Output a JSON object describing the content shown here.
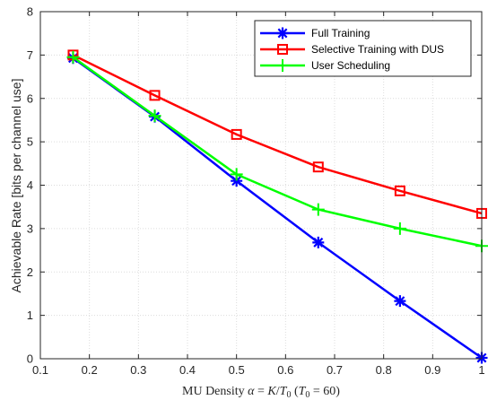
{
  "chart_data": {
    "type": "line",
    "title": "",
    "xlabel": "MU Density α = K/T₀ (T₀ = 60)",
    "ylabel": "Achievable Rate [bits per channel use]",
    "xlim": [
      0.1,
      1
    ],
    "ylim": [
      0,
      8
    ],
    "xticks": [
      "0.1",
      "0.2",
      "0.3",
      "0.4",
      "0.5",
      "0.6",
      "0.7",
      "0.8",
      "0.9",
      "1"
    ],
    "yticks": [
      "0",
      "1",
      "2",
      "3",
      "4",
      "5",
      "6",
      "7",
      "8"
    ],
    "grid": true,
    "legend_position": "top-right",
    "series": [
      {
        "name": "Full Training",
        "color": "#0000ff",
        "marker": "asterisk",
        "x": [
          0.1667,
          0.3333,
          0.5,
          0.6667,
          0.8333,
          1.0
        ],
        "y": [
          6.93,
          5.58,
          4.1,
          2.68,
          1.33,
          0.02
        ]
      },
      {
        "name": "Selective Training with DUS",
        "color": "#ff0000",
        "marker": "square",
        "x": [
          0.1667,
          0.3333,
          0.5,
          0.6667,
          0.8333,
          1.0
        ],
        "y": [
          7.0,
          6.07,
          5.17,
          4.42,
          3.87,
          3.35
        ]
      },
      {
        "name": "User Scheduling",
        "color": "#00ff00",
        "marker": "plus",
        "x": [
          0.1667,
          0.3333,
          0.5,
          0.6667,
          0.8333,
          1.0
        ],
        "y": [
          6.95,
          5.6,
          4.25,
          3.44,
          3.0,
          2.6
        ]
      }
    ]
  }
}
